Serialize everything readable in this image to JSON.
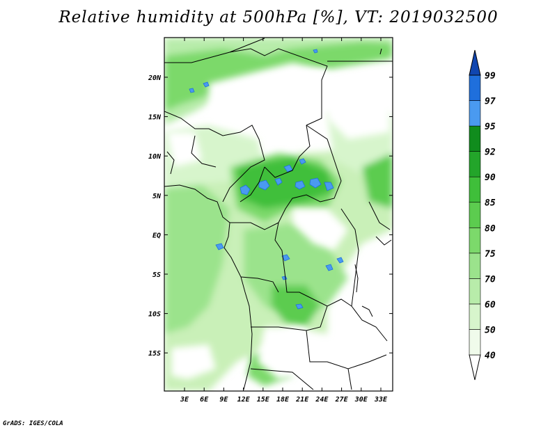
{
  "title": "Relative humidity at 500hPa [%], VT: 2019032500",
  "credit": "GrADS: IGES/COLA",
  "map": {
    "lon_ticks": [
      "3E",
      "6E",
      "9E",
      "12E",
      "15E",
      "18E",
      "21E",
      "24E",
      "27E",
      "30E",
      "33E"
    ],
    "lat_ticks": [
      "20N",
      "15N",
      "10N",
      "5N",
      "EQ",
      "5S",
      "10S",
      "15S"
    ]
  },
  "colorbar": {
    "levels": [
      "40",
      "50",
      "60",
      "70",
      "75",
      "80",
      "85",
      "90",
      "92",
      "95",
      "97",
      "99"
    ],
    "colors": [
      "#f0fbeb",
      "#d7f5cc",
      "#b8ecaa",
      "#9be38c",
      "#7cd96b",
      "#5ccc4f",
      "#3fbf3a",
      "#23a52a",
      "#108c1d",
      "#4a9af0",
      "#1f6fdc",
      "#1046b0"
    ],
    "low_color": "#ffffff",
    "high_color": "#1046b0"
  }
}
